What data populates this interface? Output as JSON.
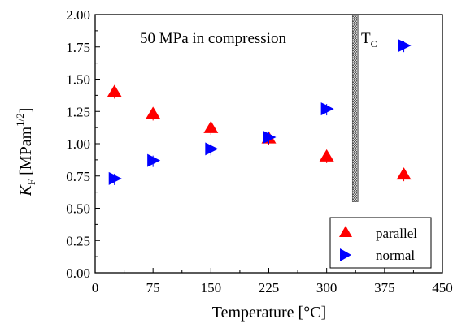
{
  "chart_data": {
    "type": "scatter",
    "title": "",
    "annotation": "50 MPa in compression",
    "tc_label": {
      "main": "T",
      "sub": "C"
    },
    "tc_x": 337,
    "tc_yrange": [
      0.55,
      2.0
    ],
    "xlabel": "Temperature [°C]",
    "ylabel": {
      "symbol": "K",
      "sub": "F",
      "unit": " [MPam",
      "exp": "1/2",
      "close": "]"
    },
    "xlim": [
      0,
      450
    ],
    "ylim": [
      0,
      2
    ],
    "xticks": [
      0,
      75,
      150,
      225,
      300,
      375,
      450
    ],
    "xtick_labels": [
      "0",
      "75",
      "150",
      "225",
      "300",
      "375",
      "450"
    ],
    "yticks": [
      0,
      0.25,
      0.5,
      0.75,
      1.0,
      1.25,
      1.5,
      1.75,
      2.0
    ],
    "ytick_labels": [
      "0.00",
      "0.25",
      "0.50",
      "0.75",
      "1.00",
      "1.25",
      "1.50",
      "1.75",
      "2.00"
    ],
    "legend_position": "bottom-right",
    "series": [
      {
        "name": "parallel",
        "marker": "triangle-up",
        "color": "#ff0000",
        "x": [
          25,
          75,
          150,
          225,
          300,
          400
        ],
        "y": [
          1.4,
          1.23,
          1.12,
          1.04,
          0.9,
          0.76
        ]
      },
      {
        "name": "normal",
        "marker": "triangle-right",
        "color": "#0000ff",
        "x": [
          25,
          75,
          150,
          225,
          300,
          400
        ],
        "y": [
          0.73,
          0.87,
          0.96,
          1.05,
          1.27,
          1.76
        ]
      }
    ]
  }
}
